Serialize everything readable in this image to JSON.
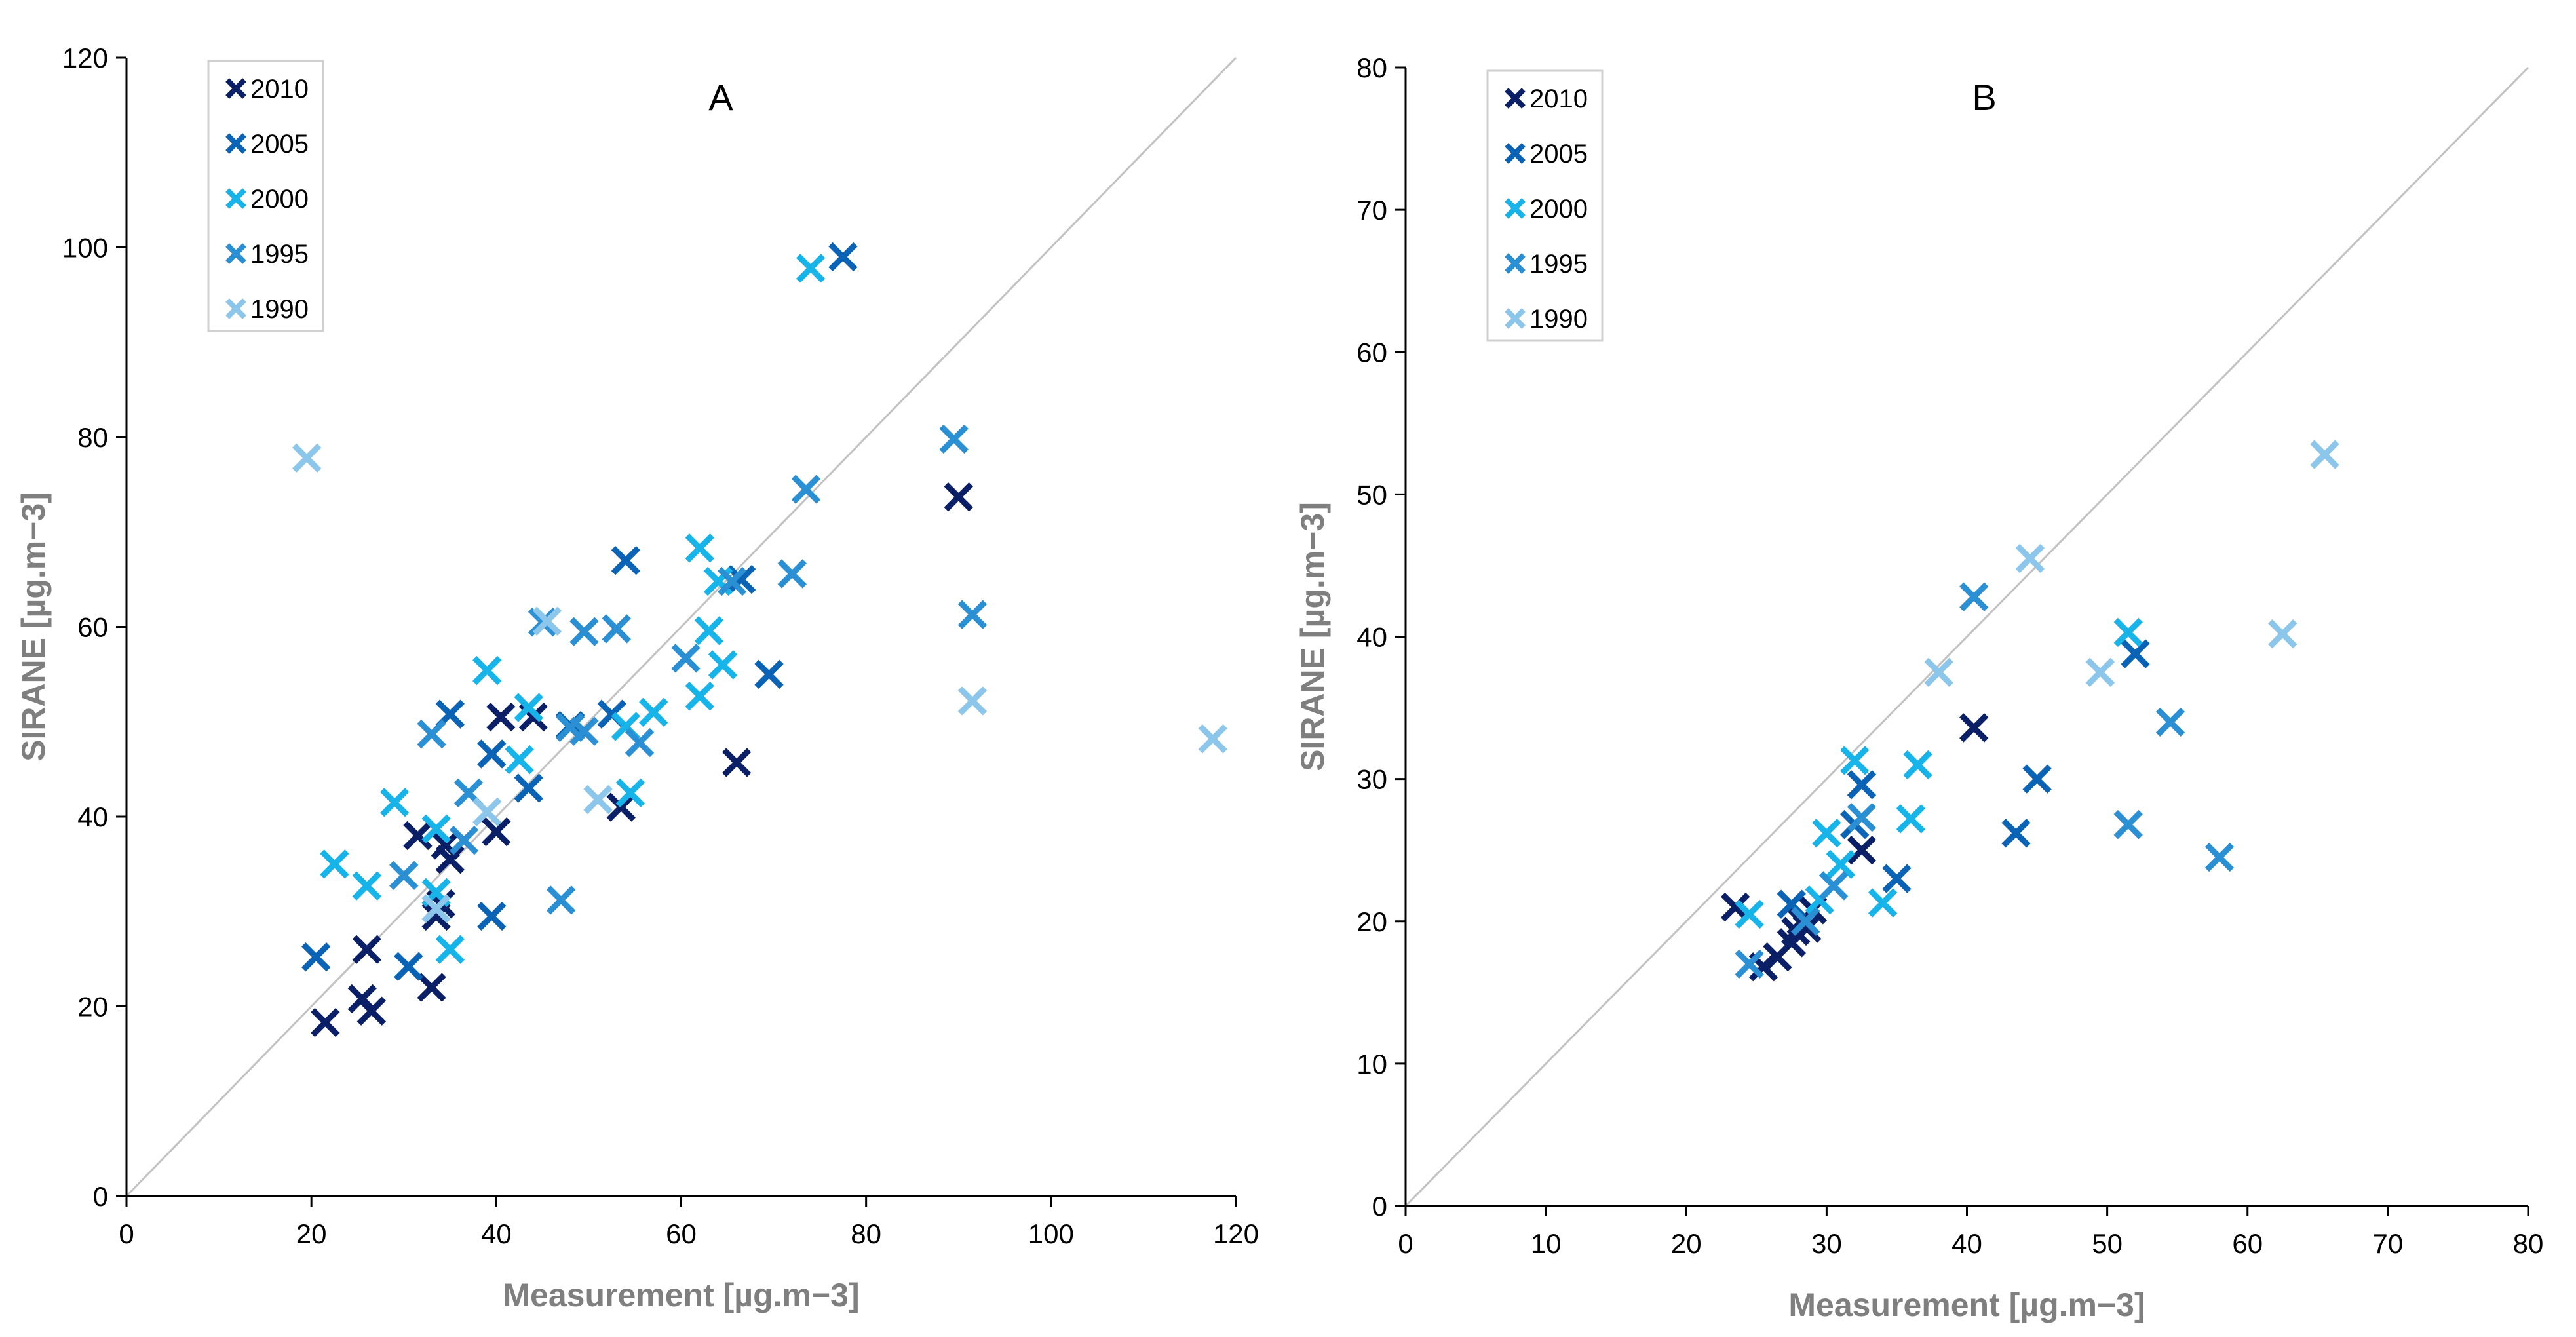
{
  "chart_data": [
    {
      "type": "scatter",
      "title": "A",
      "xlabel": "Measurement [µg.m−3]",
      "ylabel": "SIRANE [µg.m−3]",
      "xlim": [
        0,
        120
      ],
      "ylim": [
        0,
        120
      ],
      "xticks": [
        0,
        20,
        40,
        60,
        80,
        100,
        120
      ],
      "yticks": [
        0,
        20,
        40,
        60,
        80,
        100,
        120
      ],
      "grid": false,
      "legend_position": "top-left",
      "reference_line": "y = x",
      "series": [
        {
          "name": "2010",
          "color": "#0a1f66",
          "points": [
            [
              21.5,
              18.3
            ],
            [
              25.5,
              20.8
            ],
            [
              26.5,
              19.5
            ],
            [
              26,
              26
            ],
            [
              31.5,
              38
            ],
            [
              33,
              22
            ],
            [
              33.5,
              29.5
            ],
            [
              34,
              30.8
            ],
            [
              34.5,
              37
            ],
            [
              35,
              35.5
            ],
            [
              40,
              38.4
            ],
            [
              40.5,
              50.5
            ],
            [
              44,
              50.5
            ],
            [
              53.5,
              41
            ],
            [
              66,
              45.7
            ],
            [
              90,
              73.7
            ]
          ]
        },
        {
          "name": "2005",
          "color": "#0b63b5",
          "points": [
            [
              20.5,
              25.2
            ],
            [
              30.5,
              24.2
            ],
            [
              39.5,
              29.5
            ],
            [
              39.5,
              46.6
            ],
            [
              35,
              50.8
            ],
            [
              43.5,
              43
            ],
            [
              48,
              49.6
            ],
            [
              52.5,
              50.8
            ],
            [
              54,
              67
            ],
            [
              66.5,
              65
            ],
            [
              69.5,
              55
            ],
            [
              77.5,
              99
            ]
          ]
        },
        {
          "name": "2000",
          "color": "#17b4ea",
          "points": [
            [
              22.5,
              35
            ],
            [
              26,
              32.7
            ],
            [
              29,
              41.5
            ],
            [
              33.5,
              38.7
            ],
            [
              33.5,
              32
            ],
            [
              35,
              26
            ],
            [
              39,
              55.4
            ],
            [
              42.5,
              46
            ],
            [
              43.5,
              51.5
            ],
            [
              54,
              49.5
            ],
            [
              54.5,
              42.5
            ],
            [
              57,
              51
            ],
            [
              62,
              52.7
            ],
            [
              62,
              68.3
            ],
            [
              63,
              59.6
            ],
            [
              64,
              64.8
            ],
            [
              64.5,
              56
            ],
            [
              74,
              97.8
            ]
          ]
        },
        {
          "name": "1995",
          "color": "#2b8fd4",
          "points": [
            [
              30,
              33.8
            ],
            [
              33,
              48.7
            ],
            [
              36.5,
              37.5
            ],
            [
              37,
              42.5
            ],
            [
              45,
              60.5
            ],
            [
              47,
              31.2
            ],
            [
              48,
              49.4
            ],
            [
              49.5,
              49
            ],
            [
              49.5,
              59.5
            ],
            [
              53,
              59.8
            ],
            [
              55.5,
              47.8
            ],
            [
              60.5,
              56.7
            ],
            [
              65.5,
              64.8
            ],
            [
              72,
              65.6
            ],
            [
              73.5,
              74.5
            ],
            [
              89.5,
              79.8
            ],
            [
              91.5,
              61.3
            ]
          ]
        },
        {
          "name": "1990",
          "color": "#8cc6ea",
          "points": [
            [
              19.5,
              77.8
            ],
            [
              33.5,
              30.3
            ],
            [
              39,
              40.5
            ],
            [
              45.5,
              60.6
            ],
            [
              51,
              41.8
            ],
            [
              91.5,
              52.2
            ],
            [
              117.5,
              48.2
            ]
          ]
        }
      ]
    },
    {
      "type": "scatter",
      "title": "B",
      "xlabel": "Measurement [µg.m−3]",
      "ylabel": "SIRANE [µg.m−3]",
      "xlim": [
        0,
        80
      ],
      "ylim": [
        0,
        80
      ],
      "xticks": [
        0,
        10,
        20,
        30,
        40,
        50,
        60,
        70,
        80
      ],
      "yticks": [
        0,
        10,
        20,
        30,
        40,
        50,
        60,
        70,
        80
      ],
      "grid": false,
      "legend_position": "top-left",
      "reference_line": "y = x",
      "series": [
        {
          "name": "2010",
          "color": "#0a1f66",
          "points": [
            [
              23.5,
              21
            ],
            [
              25.5,
              16.8
            ],
            [
              26.5,
              17.5
            ],
            [
              27.5,
              18.5
            ],
            [
              27.8,
              19.3
            ],
            [
              28.2,
              20
            ],
            [
              28.6,
              19.5
            ],
            [
              29,
              20.8
            ],
            [
              32.5,
              25
            ],
            [
              40.5,
              33.6
            ]
          ]
        },
        {
          "name": "2005",
          "color": "#0b63b5",
          "points": [
            [
              27.5,
              21.2
            ],
            [
              32,
              26.8
            ],
            [
              32.5,
              29.6
            ],
            [
              35,
              23
            ],
            [
              43.5,
              26.2
            ],
            [
              45,
              30
            ],
            [
              52,
              38.8
            ]
          ]
        },
        {
          "name": "2000",
          "color": "#17b4ea",
          "points": [
            [
              24.5,
              20.5
            ],
            [
              29.5,
              21.5
            ],
            [
              30,
              26.2
            ],
            [
              31,
              24
            ],
            [
              32,
              31.3
            ],
            [
              34,
              21.3
            ],
            [
              36,
              27.2
            ],
            [
              36.5,
              31
            ],
            [
              51.5,
              40.3
            ]
          ]
        },
        {
          "name": "1995",
          "color": "#2b8fd4",
          "points": [
            [
              24.5,
              17
            ],
            [
              28.5,
              20
            ],
            [
              30.5,
              22.5
            ],
            [
              32.5,
              27.3
            ],
            [
              40.5,
              42.8
            ],
            [
              51.5,
              26.8
            ],
            [
              54.5,
              34
            ],
            [
              58,
              24.5
            ]
          ]
        },
        {
          "name": "1990",
          "color": "#8cc6ea",
          "points": [
            [
              38,
              37.5
            ],
            [
              44.5,
              45.5
            ],
            [
              49.5,
              37.5
            ],
            [
              62.5,
              40.2
            ],
            [
              65.5,
              52.8
            ]
          ]
        }
      ]
    }
  ]
}
